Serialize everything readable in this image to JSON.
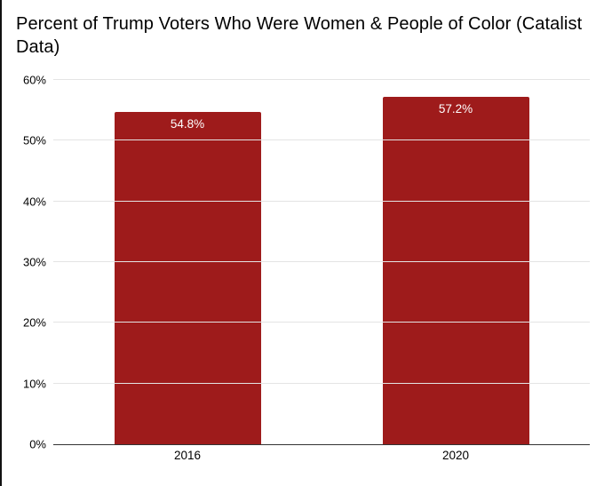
{
  "title": "Percent of Trump Voters Who Were Women & People of Color (Catalist Data)",
  "colors": {
    "bar": "#9e1b1b",
    "bar_label_text": "#ffffff",
    "gridline": "#e4e4e4",
    "axis_line": "#333333",
    "background": "#ffffff",
    "text": "#000000"
  },
  "chart_data": {
    "type": "bar",
    "title": "Percent of Trump Voters Who Were Women & People of Color (Catalist Data)",
    "categories": [
      "2016",
      "2020"
    ],
    "values": [
      54.8,
      57.2
    ],
    "value_labels": [
      "54.8%",
      "57.2%"
    ],
    "xlabel": "",
    "ylabel": "",
    "ylim": [
      0,
      60
    ],
    "yticks": [
      0,
      10,
      20,
      30,
      40,
      50,
      60
    ],
    "ytick_labels": [
      "0%",
      "10%",
      "20%",
      "30%",
      "40%",
      "50%",
      "60%"
    ],
    "grid": true,
    "legend": false,
    "bar_color": "#9e1b1b"
  }
}
